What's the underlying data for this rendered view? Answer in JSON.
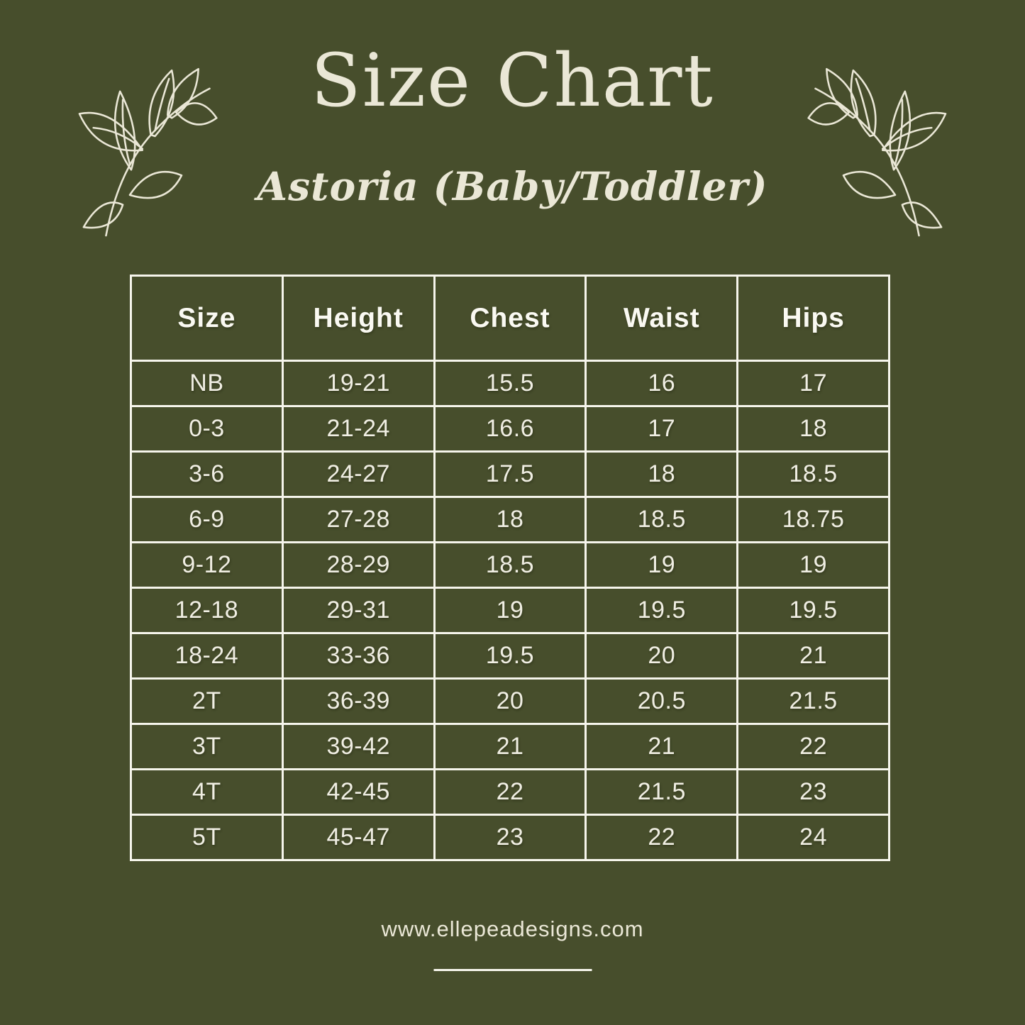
{
  "page": {
    "title": "Size Chart",
    "subtitle": "Astoria (Baby/Toddler)",
    "website": "www.ellepeadesigns.com"
  },
  "colors": {
    "background": "#474E2C",
    "cream": "#EAE7D6",
    "grid_line": "#F6F5EC",
    "header_text": "#FAF9F2",
    "cell_text": "#F0EEE3"
  },
  "decorations": {
    "left": "leaf-branch-line-art",
    "right": "leaf-branch-line-art-mirrored"
  },
  "table": {
    "headers": [
      "Size",
      "Height",
      "Chest",
      "Waist",
      "Hips"
    ],
    "rows": [
      [
        "NB",
        "19-21",
        "15.5",
        "16",
        "17"
      ],
      [
        "0-3",
        "21-24",
        "16.6",
        "17",
        "18"
      ],
      [
        "3-6",
        "24-27",
        "17.5",
        "18",
        "18.5"
      ],
      [
        "6-9",
        "27-28",
        "18",
        "18.5",
        "18.75"
      ],
      [
        "9-12",
        "28-29",
        "18.5",
        "19",
        "19"
      ],
      [
        "12-18",
        "29-31",
        "19",
        "19.5",
        "19.5"
      ],
      [
        "18-24",
        "33-36",
        "19.5",
        "20",
        "21"
      ],
      [
        "2T",
        "36-39",
        "20",
        "20.5",
        "21.5"
      ],
      [
        "3T",
        "39-42",
        "21",
        "21",
        "22"
      ],
      [
        "4T",
        "42-45",
        "22",
        "21.5",
        "23"
      ],
      [
        "5T",
        "45-47",
        "23",
        "22",
        "24"
      ]
    ]
  }
}
